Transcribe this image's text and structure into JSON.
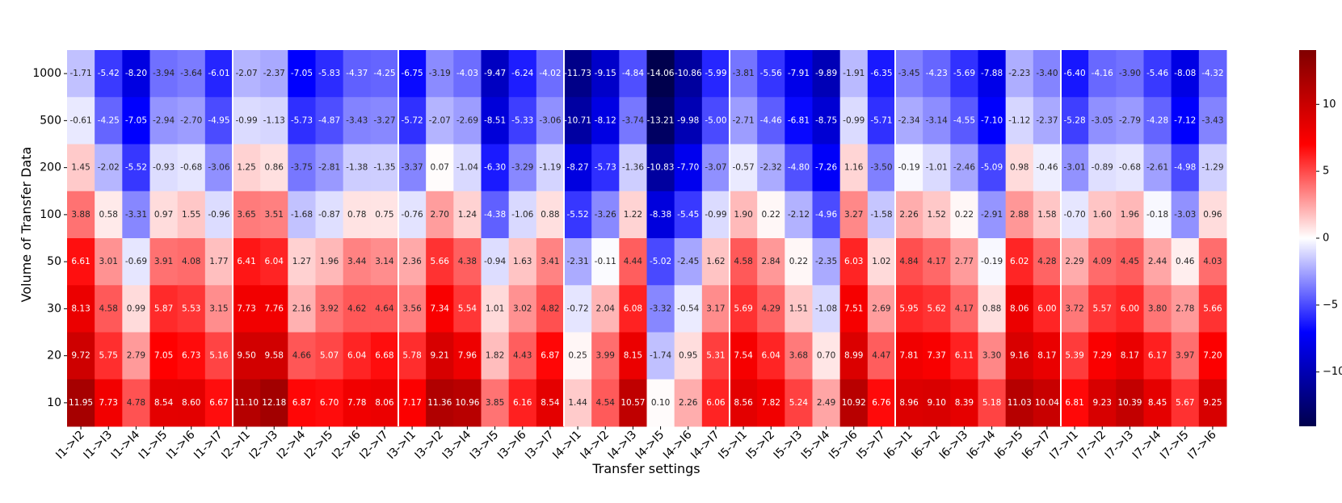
{
  "chart_data": {
    "type": "heatmap",
    "title": "",
    "xlabel": "Transfer settings",
    "ylabel": "Volume of Transfer Data",
    "colormap": "seismic",
    "vmin": -14.06,
    "vmax": 14.06,
    "colorbar_ticks": [
      -10,
      -5,
      0,
      5,
      10
    ],
    "colorbar_tick_labels": [
      "−10",
      "−5",
      "0",
      "5",
      "10"
    ],
    "group_size": 6,
    "rows": [
      "1000",
      "500",
      "200",
      "100",
      "50",
      "30",
      "20",
      "10"
    ],
    "columns": [
      "I1->I2",
      "I1->I3",
      "I1->I4",
      "I1->I5",
      "I1->I6",
      "I1->I7",
      "I2->I1",
      "I2->I3",
      "I2->I4",
      "I2->I5",
      "I2->I6",
      "I2->I7",
      "I3->I1",
      "I3->I2",
      "I3->I4",
      "I3->I5",
      "I3->I6",
      "I3->I7",
      "I4->I1",
      "I4->I2",
      "I4->I3",
      "I4->I5",
      "I4->I6",
      "I4->I7",
      "I5->I1",
      "I5->I2",
      "I5->I3",
      "I5->I4",
      "I5->I6",
      "I5->I7",
      "I6->I1",
      "I6->I2",
      "I6->I3",
      "I6->I4",
      "I6->I5",
      "I6->I7",
      "I7->I1",
      "I7->I2",
      "I7->I3",
      "I7->I4",
      "I7->I5",
      "I7->I6"
    ],
    "values": [
      [
        -1.71,
        -5.42,
        -8.2,
        -3.94,
        -3.64,
        -6.01,
        -2.07,
        -2.37,
        -7.05,
        -5.83,
        -4.37,
        -4.25,
        -6.75,
        -3.19,
        -4.03,
        -9.47,
        -6.24,
        -4.02,
        -11.73,
        -9.15,
        -4.84,
        -14.06,
        -10.86,
        -5.99,
        -3.81,
        -5.56,
        -7.91,
        -9.89,
        -1.91,
        -6.35,
        -3.45,
        -4.23,
        -5.69,
        -7.88,
        -2.23,
        -3.4,
        -6.4,
        -4.16,
        -3.9,
        -5.46,
        -8.08,
        -4.32
      ],
      [
        -0.61,
        -4.25,
        -7.05,
        -2.94,
        -2.7,
        -4.95,
        -0.99,
        -1.13,
        -5.73,
        -4.87,
        -3.43,
        -3.27,
        -5.72,
        -2.07,
        -2.69,
        -8.51,
        -5.33,
        -3.06,
        -10.71,
        -8.12,
        -3.74,
        -13.21,
        -9.98,
        -5.0,
        -2.71,
        -4.46,
        -6.81,
        -8.75,
        -0.99,
        -5.71,
        -2.34,
        -3.14,
        -4.55,
        -7.1,
        -1.12,
        -2.37,
        -5.28,
        -3.05,
        -2.79,
        -4.28,
        -7.12,
        -3.43
      ],
      [
        1.45,
        -2.02,
        -5.52,
        -0.93,
        -0.68,
        -3.06,
        1.25,
        0.86,
        -3.75,
        -2.81,
        -1.38,
        -1.35,
        -3.37,
        0.07,
        -1.04,
        -6.3,
        -3.29,
        -1.19,
        -8.27,
        -5.73,
        -1.36,
        -10.83,
        -7.7,
        -3.07,
        -0.57,
        -2.32,
        -4.8,
        -7.26,
        1.16,
        -3.5,
        -0.19,
        -1.01,
        -2.46,
        -5.09,
        0.98,
        -0.46,
        -3.01,
        -0.89,
        -0.68,
        -2.61,
        -4.98,
        -1.29
      ],
      [
        3.88,
        0.58,
        -3.31,
        0.97,
        1.55,
        -0.96,
        3.65,
        3.51,
        -1.68,
        -0.87,
        0.78,
        0.75,
        -0.76,
        2.7,
        1.24,
        -4.38,
        -1.06,
        0.88,
        -5.52,
        -3.26,
        1.22,
        -8.38,
        -5.45,
        -0.99,
        1.9,
        0.22,
        -2.12,
        -4.96,
        3.27,
        -1.58,
        2.26,
        1.52,
        0.22,
        -2.91,
        2.88,
        1.58,
        -0.7,
        1.6,
        1.96,
        -0.18,
        -3.03,
        0.96
      ],
      [
        6.61,
        3.01,
        -0.69,
        3.91,
        4.08,
        1.77,
        6.41,
        6.04,
        1.27,
        1.96,
        3.44,
        3.14,
        2.36,
        5.66,
        4.38,
        -0.94,
        1.63,
        3.41,
        -2.31,
        -0.11,
        4.44,
        -5.02,
        -2.45,
        1.62,
        4.58,
        2.84,
        0.22,
        -2.35,
        6.03,
        1.02,
        4.84,
        4.17,
        2.77,
        -0.19,
        6.02,
        4.28,
        2.29,
        4.09,
        4.45,
        2.44,
        0.46,
        4.03
      ],
      [
        8.13,
        4.58,
        0.99,
        5.87,
        5.53,
        3.15,
        7.73,
        7.76,
        2.16,
        3.92,
        4.62,
        4.64,
        3.56,
        7.34,
        5.54,
        1.01,
        3.02,
        4.82,
        -0.72,
        2.04,
        6.08,
        -3.32,
        -0.54,
        3.17,
        5.69,
        4.29,
        1.51,
        -1.08,
        7.51,
        2.69,
        5.95,
        5.62,
        4.17,
        0.88,
        8.06,
        6.0,
        3.72,
        5.57,
        6.0,
        3.8,
        2.78,
        5.66
      ],
      [
        9.72,
        5.75,
        2.79,
        7.05,
        6.73,
        5.16,
        9.5,
        9.58,
        4.66,
        5.07,
        6.04,
        6.68,
        5.78,
        9.21,
        7.96,
        1.82,
        4.43,
        6.87,
        0.25,
        3.99,
        8.15,
        -1.74,
        0.95,
        5.31,
        7.54,
        6.04,
        3.68,
        0.7,
        8.99,
        4.47,
        7.81,
        7.37,
        6.11,
        3.3,
        9.16,
        8.17,
        5.39,
        7.29,
        8.17,
        6.17,
        3.97,
        7.2
      ],
      [
        11.95,
        7.73,
        4.78,
        8.54,
        8.6,
        6.67,
        11.1,
        12.18,
        6.87,
        6.7,
        7.78,
        8.06,
        7.17,
        11.36,
        10.96,
        3.85,
        6.16,
        8.54,
        1.44,
        4.54,
        10.57,
        0.1,
        2.26,
        6.06,
        8.56,
        7.82,
        5.24,
        2.49,
        10.92,
        6.76,
        8.96,
        9.1,
        8.39,
        5.18,
        11.03,
        10.04,
        6.81,
        9.23,
        10.39,
        8.45,
        5.67,
        9.25
      ]
    ]
  }
}
